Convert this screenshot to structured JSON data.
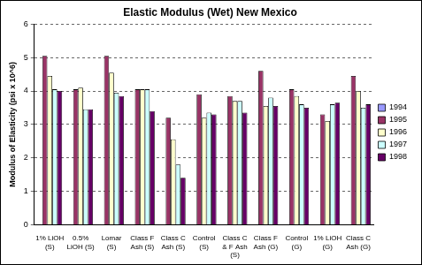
{
  "chart_data": {
    "type": "bar",
    "title": "Elastic Modulus (Wet) New Mexico",
    "y_label": "Modulus of Elasticity (psi x 10^6)",
    "categories": [
      "1% LiOH (S)",
      "0.5% LiOH (S)",
      "Lomar (S)",
      "Class F Ash (S)",
      "Class C Ash (S)",
      "Control (S)",
      "Class C & F Ash (S)",
      "Class F Ash (G)",
      "Control (G)",
      "1% LiOH (G)",
      "Class C Ash (G)"
    ],
    "series": [
      {
        "name": "1994",
        "color": "#9999ff",
        "values": [
          null,
          null,
          null,
          null,
          null,
          null,
          null,
          null,
          null,
          null,
          null
        ]
      },
      {
        "name": "1995",
        "color": "#993366",
        "values": [
          5.05,
          4.05,
          5.05,
          4.05,
          3.2,
          3.9,
          3.85,
          4.6,
          4.05,
          3.3,
          4.45
        ]
      },
      {
        "name": "1996",
        "color": "#ffffcc",
        "values": [
          4.45,
          4.1,
          4.55,
          4.05,
          2.55,
          3.2,
          3.7,
          3.55,
          3.85,
          3.1,
          4.0
        ]
      },
      {
        "name": "1997",
        "color": "#ccffff",
        "values": [
          4.05,
          3.45,
          3.95,
          4.05,
          1.8,
          3.35,
          3.7,
          3.8,
          3.6,
          3.6,
          3.5
        ]
      },
      {
        "name": "1998",
        "color": "#660066",
        "values": [
          4.0,
          3.45,
          3.85,
          3.4,
          1.4,
          3.3,
          3.35,
          3.55,
          3.5,
          3.65,
          3.6
        ]
      }
    ],
    "ylim": [
      0,
      6
    ],
    "yticks": [
      0,
      1,
      2,
      3,
      4,
      5,
      6
    ],
    "grid": true,
    "legend": "right"
  }
}
